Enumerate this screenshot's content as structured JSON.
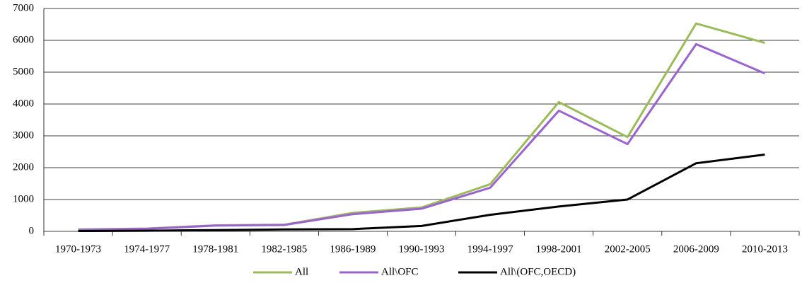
{
  "chart_data": {
    "type": "line",
    "categories": [
      "1970-1973",
      "1974-1977",
      "1978-1981",
      "1982-1985",
      "1986-1989",
      "1990-1993",
      "1994-1997",
      "1998-2001",
      "2002-2005",
      "2006-2009",
      "2010-2013"
    ],
    "series": [
      {
        "name": "All",
        "color": "#9bbb59",
        "values": [
          60,
          90,
          190,
          210,
          580,
          750,
          1480,
          4060,
          2960,
          6530,
          5920
        ]
      },
      {
        "name": "All\\OFC",
        "color": "#9b63cf",
        "values": [
          50,
          80,
          180,
          200,
          540,
          710,
          1370,
          3790,
          2740,
          5880,
          4960
        ]
      },
      {
        "name": "All\\(OFC,OECD)",
        "color": "#000000",
        "values": [
          10,
          20,
          40,
          60,
          70,
          170,
          520,
          780,
          1000,
          2140,
          2410
        ]
      }
    ],
    "ylim": [
      0,
      7000
    ],
    "yticks": [
      0,
      1000,
      2000,
      3000,
      4000,
      5000,
      6000,
      7000
    ],
    "grid": true,
    "legend": "bottom"
  }
}
